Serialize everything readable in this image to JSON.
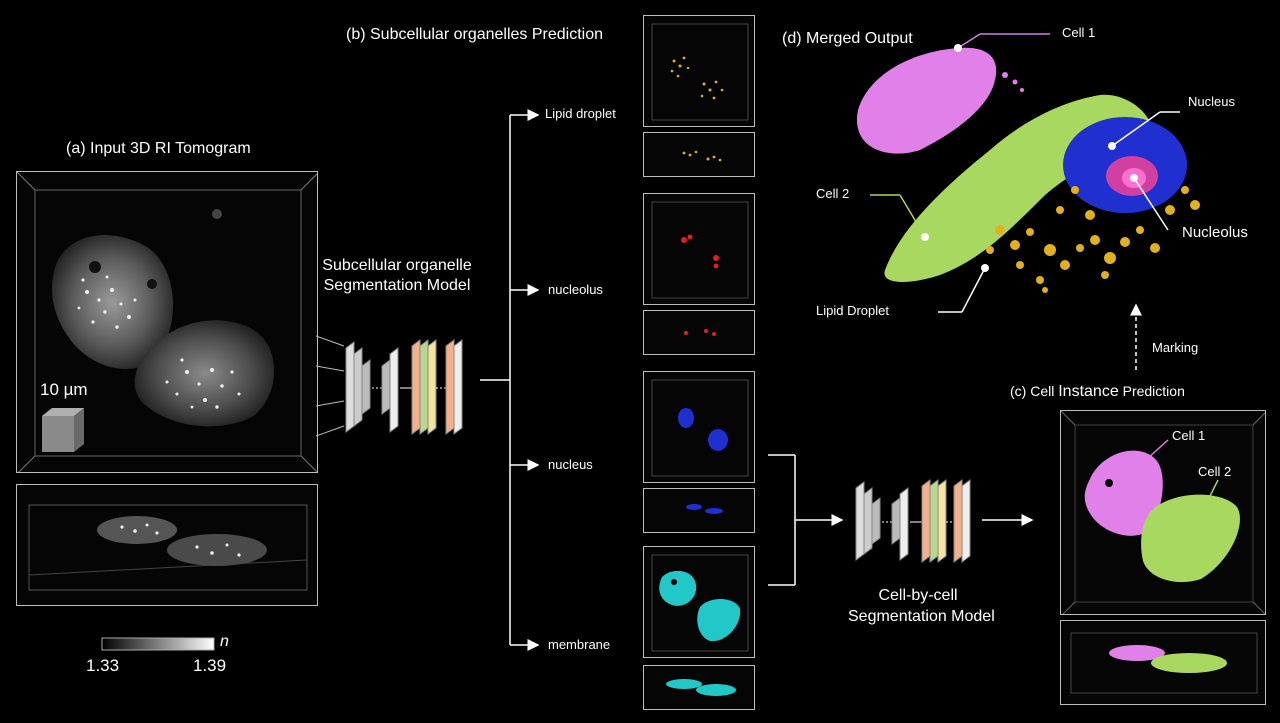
{
  "panels": {
    "a_title": "(a) Input 3D RI Tomogram",
    "b_title": "(b) Subcellular organelles Prediction",
    "c_title_prefix": "(c) Cell ",
    "c_title_big": "Instance",
    "c_title_suffix": " Prediction",
    "d_title": "(d) Merged Output"
  },
  "scale_bar": "10 µm",
  "colorbar": {
    "symbol": "n",
    "min": "1.33",
    "max": "1.39"
  },
  "models": {
    "organelle_line1": "Subcellular organelle",
    "organelle_line2": "Segmentation Model",
    "cell_line1": "Cell-by-cell",
    "cell_line2": "Segmentation Model"
  },
  "branches": [
    "Lipid droplet",
    "nucleolus",
    "nucleus",
    "membrane"
  ],
  "merged_labels": {
    "cell1": "Cell 1",
    "cell2": "Cell 2",
    "nucleus": "Nucleus",
    "nucleolus": "Nucleolus",
    "lipid": "Lipid Droplet"
  },
  "instance_labels": {
    "cell1": "Cell 1",
    "cell2": "Cell 2"
  },
  "marking": "Marking",
  "colors": {
    "lipid": "#e0b020",
    "nucleolus": "#e02020",
    "nucleus": "#2030d0",
    "membrane": "#22c8c8",
    "cell1": "#e080e8",
    "cell2": "#a8d860",
    "model_orange": "#f4b08c",
    "model_green": "#b8d890",
    "model_yellow": "#f4e4a0"
  }
}
